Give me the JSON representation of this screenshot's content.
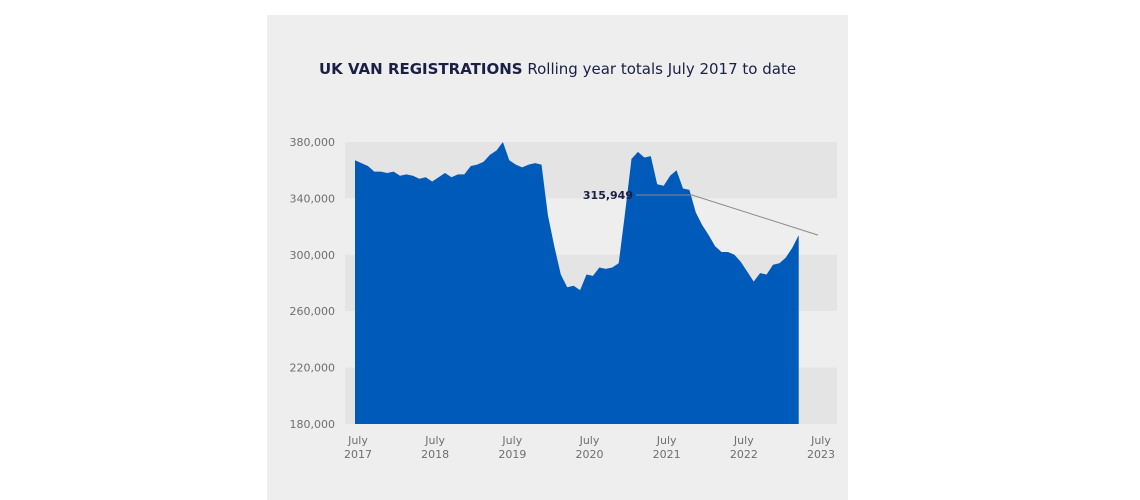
{
  "chart_data": {
    "type": "area",
    "title": "UK VAN REGISTRATIONS",
    "subtitle": "Rolling year totals July 2017 to date",
    "xlabel": "",
    "ylabel": "",
    "ylim": [
      180000,
      380000
    ],
    "yticks": [
      "380,000",
      "340,000",
      "300,000",
      "260,000",
      "220,000",
      "180,000"
    ],
    "ytick_values": [
      380000,
      340000,
      300000,
      260000,
      220000,
      180000
    ],
    "xticks": [
      {
        "line1": "July",
        "line2": "2017",
        "month_index": 0
      },
      {
        "line1": "July",
        "line2": "2018",
        "month_index": 12
      },
      {
        "line1": "July",
        "line2": "2019",
        "month_index": 24
      },
      {
        "line1": "July",
        "line2": "2020",
        "month_index": 36
      },
      {
        "line1": "July",
        "line2": "2021",
        "month_index": 48
      },
      {
        "line1": "July",
        "line2": "2022",
        "month_index": 60
      },
      {
        "line1": "July",
        "line2": "2023",
        "month_index": 72
      }
    ],
    "grid": "alternating horizontal bands",
    "color": "#005ab9",
    "annotation": {
      "text": "315,949",
      "month_index": 72,
      "value": 315949
    },
    "series": [
      {
        "values": [
          367000,
          365000,
          363000,
          359000,
          359000,
          358000,
          359000,
          356000,
          357000,
          356000,
          354000,
          355000,
          352000,
          355000,
          358000,
          355000,
          357000,
          357000,
          363000,
          364000,
          366000,
          371000,
          374000,
          380000,
          367000,
          364000,
          362000,
          364000,
          365000,
          364000,
          328000,
          306000,
          286000,
          277000,
          278000,
          275000,
          286000,
          285000,
          291000,
          290000,
          291000,
          294000,
          330000,
          368000,
          373000,
          369000,
          370000,
          350000,
          349000,
          356000,
          360000,
          347000,
          346000,
          330000,
          321000,
          314000,
          306000,
          302000,
          302000,
          300000,
          295000,
          288000,
          281000,
          287000,
          286000,
          293000,
          294000,
          298000,
          305000,
          314000
        ]
      }
    ]
  }
}
